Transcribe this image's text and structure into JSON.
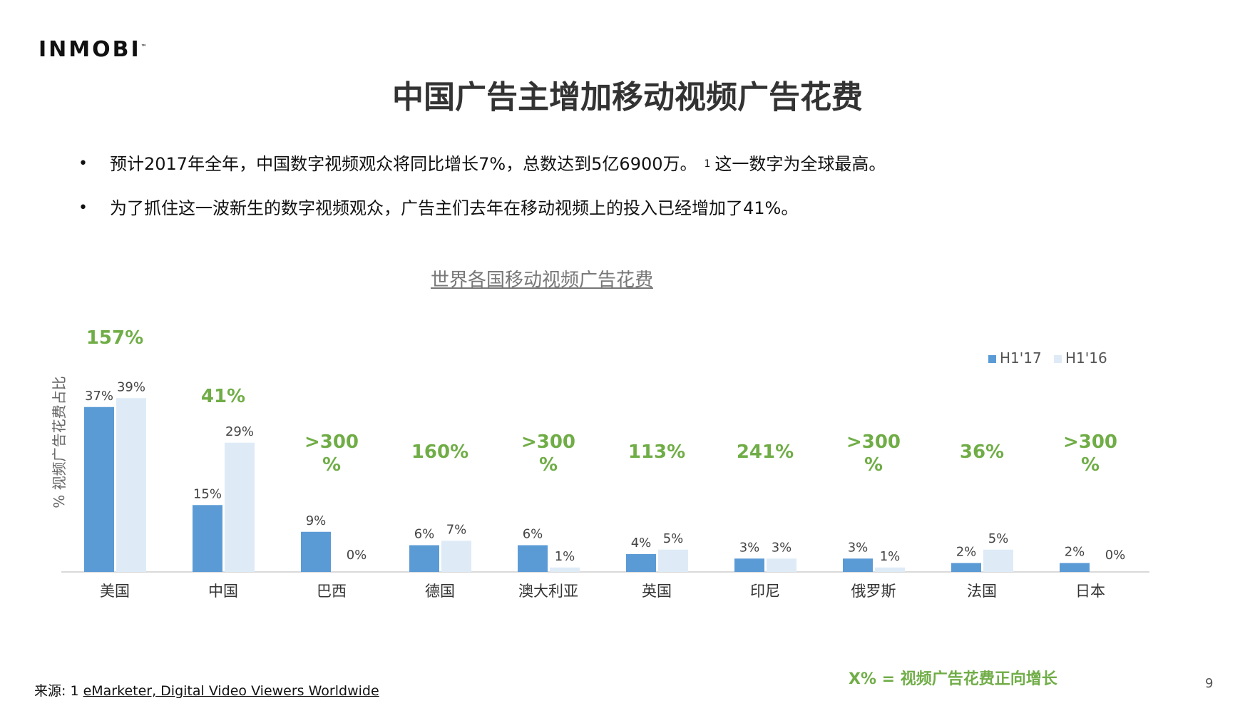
{
  "logo_text": "INMOBI",
  "title": "中国广告主增加移动视频广告花费",
  "bullets": [
    {
      "text": "预计2017年全年，中国数字视频观众将同比增长7%，总数达到5亿6900万。",
      "sup": "1",
      "tail": "这一数字为全球最高。"
    },
    {
      "text": "为了抓住这一波新生的数字视频观众，广告主们去年在移动视频上的投入已经增加了41%。",
      "sup": "",
      "tail": ""
    }
  ],
  "chart_title": "世界各国移动视频广告花费",
  "chart_data": {
    "type": "bar",
    "ylabel": "% 视频广告花费占比",
    "categories": [
      "美国",
      "中国",
      "巴西",
      "德国",
      "澳大利亚",
      "英国",
      "印尼",
      "俄罗斯",
      "法国",
      "日本"
    ],
    "series": [
      {
        "name": "H1'17",
        "color": "#5b9bd5",
        "values": [
          37,
          15,
          9,
          6,
          6,
          4,
          3,
          3,
          2,
          2
        ]
      },
      {
        "name": "H1'16",
        "color": "#deebf7",
        "values": [
          39,
          29,
          0,
          7,
          1,
          5,
          3,
          1,
          5,
          0
        ]
      }
    ],
    "growth_labels": [
      "157%",
      "41%",
      ">300%",
      "160%",
      ">300%",
      "113%",
      "241%",
      ">300%",
      "36%",
      ">300%"
    ],
    "growth_color": "#70ad47",
    "ylim": [
      0,
      40
    ],
    "legend_position": "top-right"
  },
  "legend_note": "X% = 视频广告花费正向增长",
  "footnote": {
    "prefix": "来源: 1 ",
    "source": "eMarketer, Digital Video Viewers Worldwide"
  },
  "page_number": "9"
}
